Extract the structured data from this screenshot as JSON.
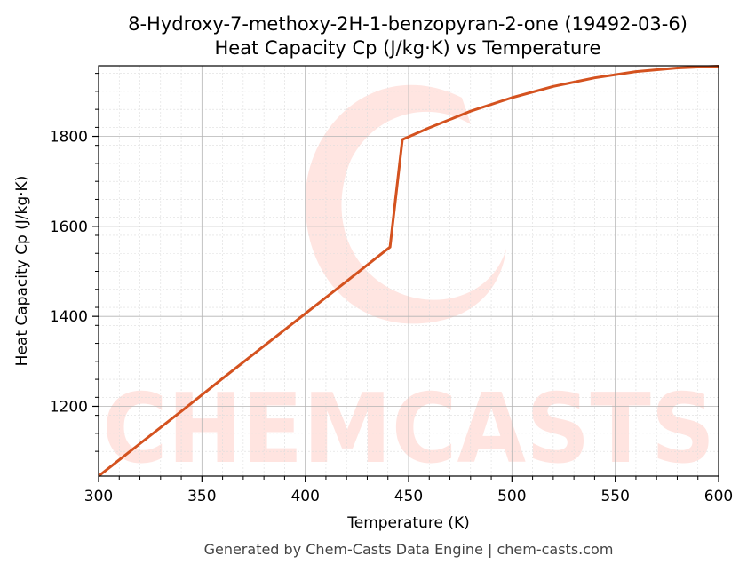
{
  "chart_data": {
    "type": "line",
    "title": "8-Hydroxy-7-methoxy-2H-1-benzopyran-2-one (19492-03-6)",
    "subtitle": "Heat Capacity Cp (J/kg·K) vs Temperature",
    "xlabel": "Temperature (K)",
    "ylabel": "Heat Capacity Cp (J/kg·K)",
    "xlim": [
      300,
      600
    ],
    "ylim": [
      1045,
      1957
    ],
    "xticks": [
      300,
      350,
      400,
      450,
      500,
      550,
      600
    ],
    "yticks": [
      1200,
      1400,
      1600,
      1800
    ],
    "grid": true,
    "series": [
      {
        "color": "#d4521f",
        "x": [
          300,
          320,
          340,
          360,
          380,
          400,
          420,
          441,
          447,
          460,
          480,
          500,
          520,
          540,
          560,
          580,
          600
        ],
        "y": [
          1045,
          1117,
          1189,
          1262,
          1334,
          1406,
          1478,
          1554,
          1793,
          1819,
          1856,
          1886,
          1911,
          1930,
          1944,
          1952,
          1956
        ]
      }
    ]
  },
  "watermark": "CHEMCASTS",
  "footer": "Generated by Chem-Casts Data Engine | chem-casts.com"
}
